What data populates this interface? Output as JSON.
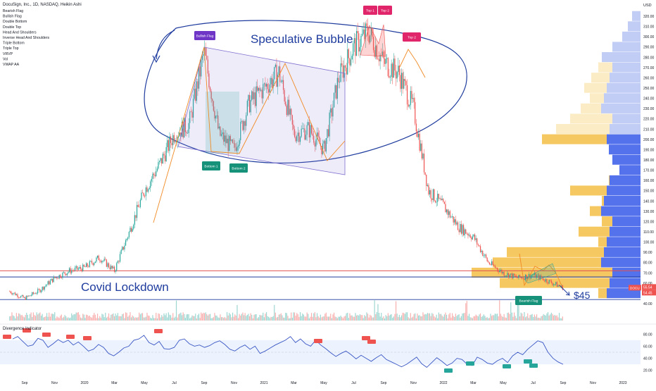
{
  "header": {
    "title": "DocuSign, Inc., 1D, NASDAQ, Heikin Ashi",
    "indicators": [
      "Bearish Flag",
      "Bullish Flag",
      "Double Bottom",
      "Double Top",
      "Head And Shoulders",
      "Inverse Head And Shoulders",
      "Triple Bottom",
      "Triple Top",
      "VRVP",
      "Vol",
      "VWAP AA"
    ],
    "currency": "USD"
  },
  "chart_data": [
    {
      "type": "candlestick",
      "title": "",
      "xlabel": "",
      "ylabel": "",
      "x_tick_labels": [
        "Sep",
        "Nov",
        "2020",
        "Mar",
        "May",
        "Jul",
        "Sep",
        "Nov",
        "2021",
        "Mar",
        "May",
        "Jul",
        "Sep",
        "Nov",
        "2022",
        "Mar",
        "May",
        "Jul",
        "Sep",
        "Nov",
        "2023"
      ],
      "y_tick_labels": [
        "320.00",
        "310.00",
        "300.00",
        "290.00",
        "280.00",
        "270.00",
        "260.00",
        "250.00",
        "240.00",
        "230.00",
        "220.00",
        "210.00",
        "200.00",
        "190.00",
        "180.00",
        "170.00",
        "160.00",
        "150.00",
        "140.00",
        "130.00",
        "120.00",
        "110.00",
        "100.00",
        "90.00",
        "80.00",
        "70.00",
        "60.00",
        "50.00",
        "40.00"
      ],
      "ylim": [
        40,
        322
      ],
      "price_path_months": [
        [
          "2019-08",
          52
        ],
        [
          "2019-09",
          45
        ],
        [
          "2019-10",
          53
        ],
        [
          "2019-11",
          65
        ],
        [
          "2019-12",
          72
        ],
        [
          "2020-01",
          75
        ],
        [
          "2020-02",
          85
        ],
        [
          "2020-03",
          72
        ],
        [
          "2020-04",
          110
        ],
        [
          "2020-05",
          150
        ],
        [
          "2020-06",
          175
        ],
        [
          "2020-07",
          205
        ],
        [
          "2020-08",
          215
        ],
        [
          "2020-09",
          285
        ],
        [
          "2020-10",
          205
        ],
        [
          "2020-11",
          190
        ],
        [
          "2020-12",
          235
        ],
        [
          "2021-01",
          250
        ],
        [
          "2021-02",
          265
        ],
        [
          "2021-03",
          205
        ],
        [
          "2021-04",
          210
        ],
        [
          "2021-05",
          190
        ],
        [
          "2021-06",
          260
        ],
        [
          "2021-07",
          290
        ],
        [
          "2021-08",
          305
        ],
        [
          "2021-09",
          275
        ],
        [
          "2021-10",
          265
        ],
        [
          "2021-11",
          230
        ],
        [
          "2021-12",
          150
        ],
        [
          "2022-01",
          135
        ],
        [
          "2022-02",
          115
        ],
        [
          "2022-03",
          105
        ],
        [
          "2022-04",
          80
        ],
        [
          "2022-05",
          70
        ],
        [
          "2022-06",
          65
        ],
        [
          "2022-07",
          68
        ],
        [
          "2022-08",
          62
        ],
        [
          "2022-09",
          55.54
        ]
      ],
      "price_label": "DOCU",
      "last_price": "55.54",
      "secondary_price": "54.45",
      "horizontal_levels": [
        {
          "value": 72,
          "color": "#e05050"
        },
        {
          "value": 66,
          "color": "#1f3c9e"
        },
        {
          "value": 44,
          "color": "#1f3c9e"
        }
      ],
      "annotations": {
        "speculative_bubble": "Speculative Bubble",
        "covid_lockdown": "Covid Lockdown",
        "target": "$45"
      },
      "pattern_labels": [
        {
          "text": "Bullish Flag",
          "color": "#6f35c6"
        },
        {
          "text": "Bottom 1",
          "color": "#17927a"
        },
        {
          "text": "Bottom 2",
          "color": "#17927a"
        },
        {
          "text": "Top 1",
          "color": "#e0256a"
        },
        {
          "text": "Top 2",
          "color": "#e0256a"
        },
        {
          "text": "Top 2",
          "color": "#e0256a"
        },
        {
          "text": "Bearish Flag",
          "color": "#17927a"
        }
      ],
      "volume_profile_note": "VRVP",
      "colors": {
        "up": "#26a69a",
        "down": "#ef5350",
        "bubble": "#1f3c9e",
        "channel": "#7e6fd0"
      }
    },
    {
      "type": "line",
      "title": "Divergence Indicator",
      "y_tick_labels": [
        "80.00",
        "60.00",
        "40.00",
        "20.00"
      ],
      "ylim": [
        15,
        85
      ],
      "band": [
        30,
        70
      ],
      "series": [
        {
          "values": [
            72,
            76,
            68,
            60,
            62,
            73,
            70,
            58,
            64,
            71,
            66,
            70,
            62,
            67,
            60,
            52,
            55,
            63,
            58,
            48,
            44,
            50,
            57,
            60,
            70,
            72,
            78,
            66,
            62,
            68,
            56,
            55,
            58,
            70,
            72,
            64,
            60,
            62,
            58,
            61,
            66,
            69,
            63,
            55,
            52,
            58,
            62,
            55,
            60,
            48,
            52,
            57,
            62,
            66,
            70,
            76,
            66,
            72,
            64,
            60,
            70,
            62,
            56,
            49,
            43,
            48,
            52,
            46,
            39,
            45,
            40,
            35,
            41,
            46,
            38,
            34,
            30,
            26,
            30,
            36,
            42,
            31,
            25,
            33,
            41,
            35,
            28,
            32,
            40,
            38,
            30,
            28,
            42,
            38,
            32,
            30,
            36,
            40,
            33,
            44,
            50,
            46,
            55,
            62,
            69,
            66,
            50,
            40,
            34,
            30
          ]
        }
      ]
    }
  ]
}
